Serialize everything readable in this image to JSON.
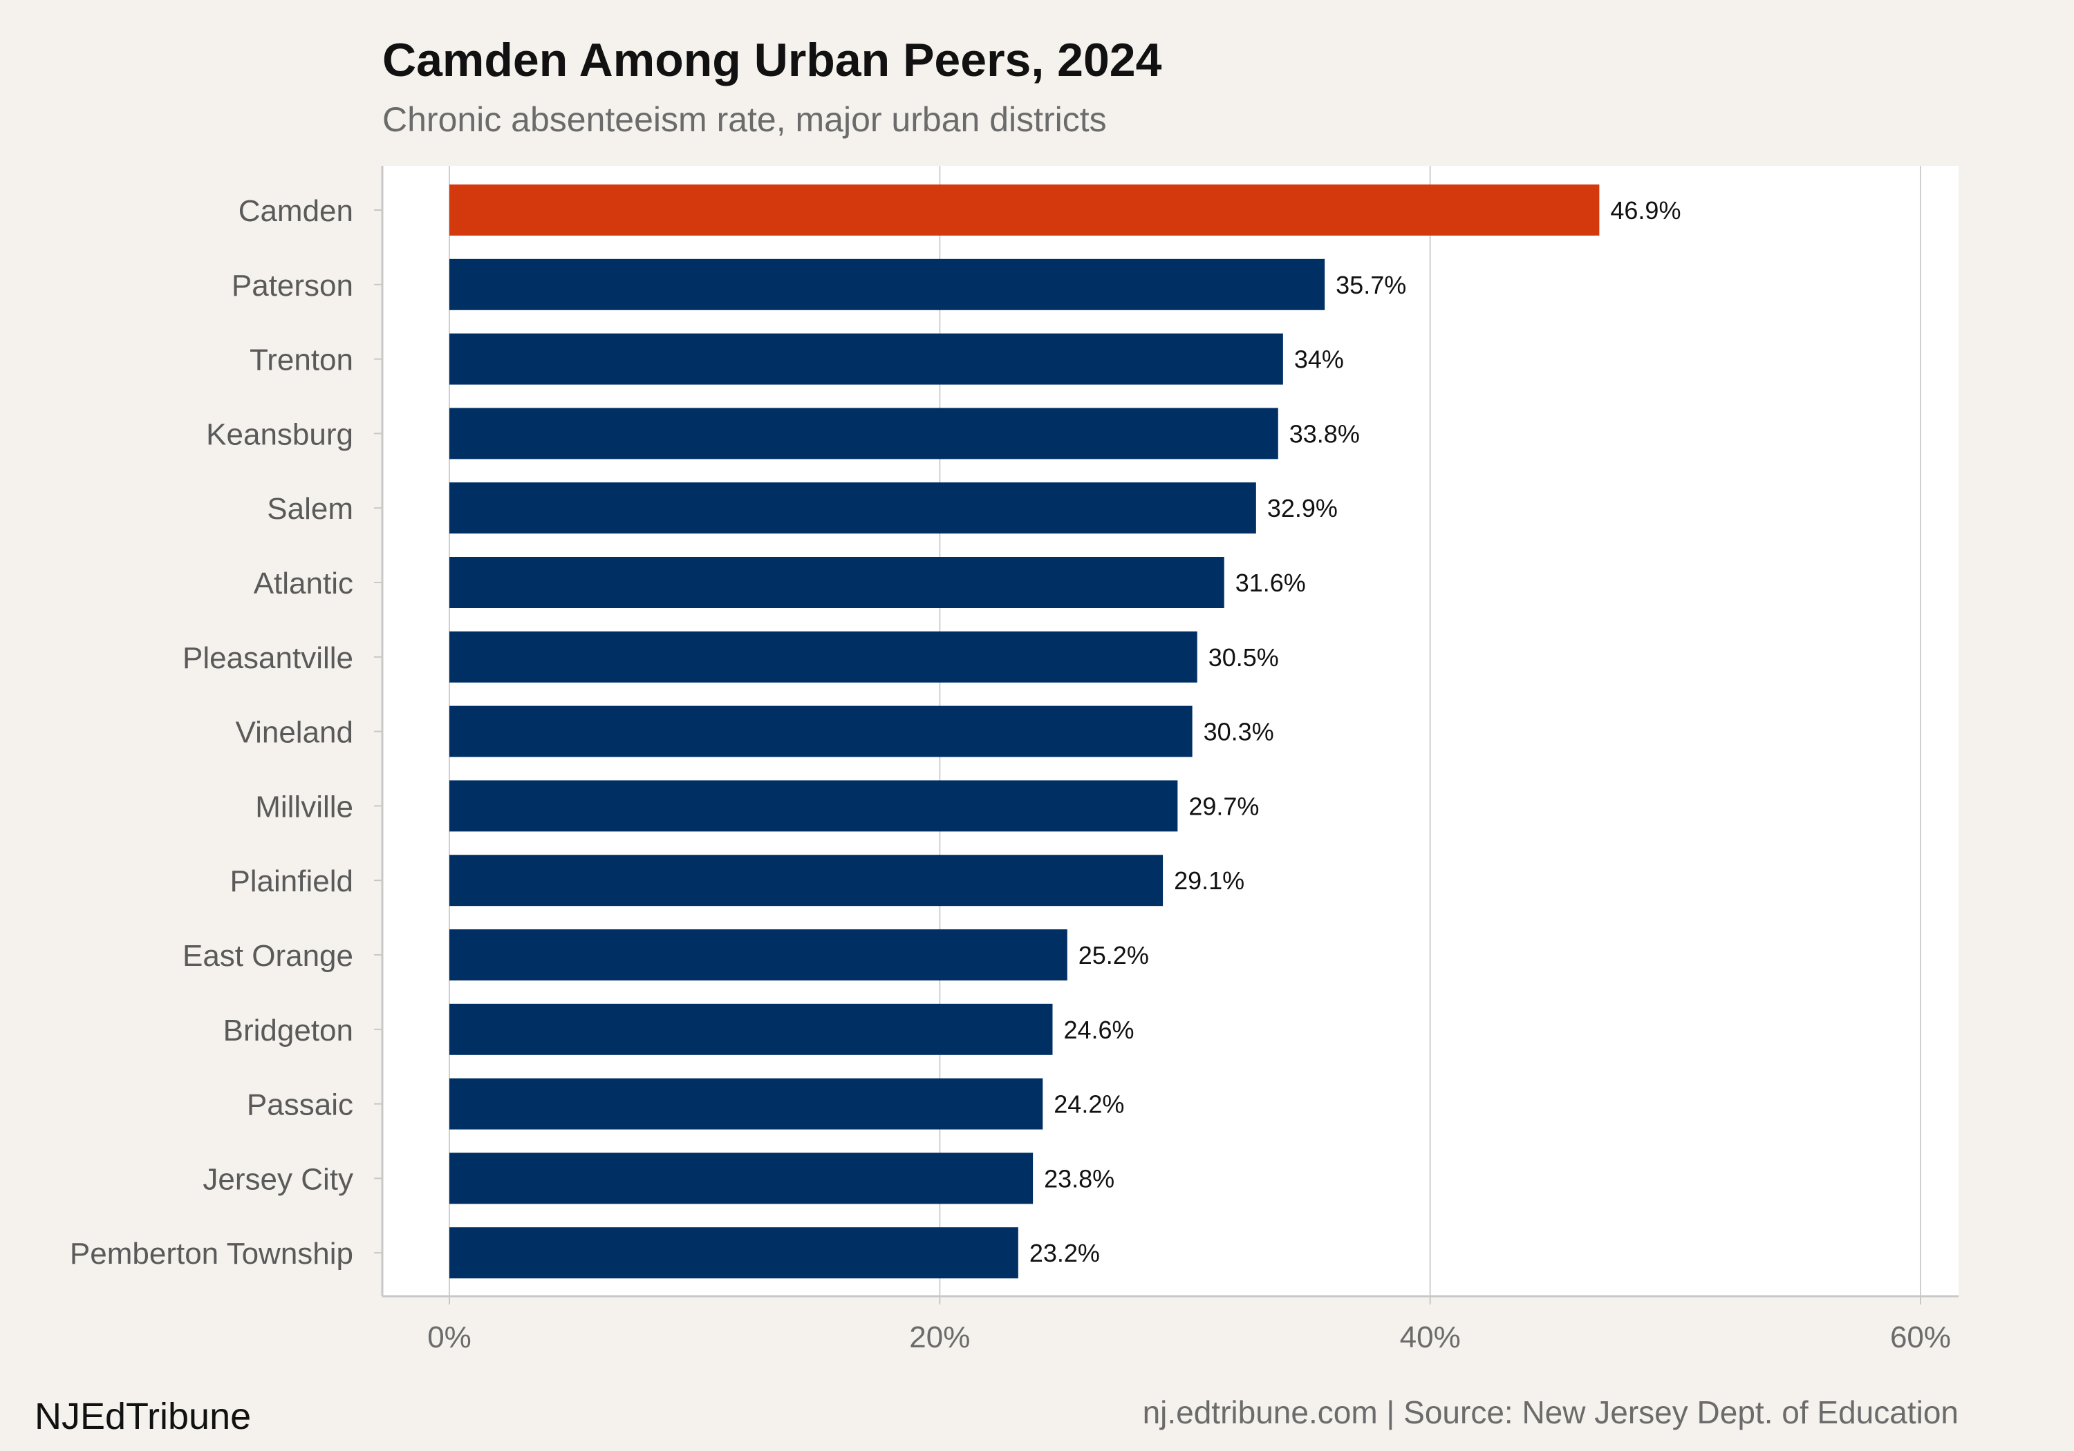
{
  "chart_data": {
    "type": "bar",
    "orientation": "horizontal",
    "title": "Camden Among Urban Peers, 2024",
    "subtitle": "Chronic absenteeism rate, major urban districts",
    "categories": [
      "Camden",
      "Paterson",
      "Trenton",
      "Keansburg",
      "Salem",
      "Atlantic",
      "Pleasantville",
      "Vineland",
      "Millville",
      "Plainfield",
      "East Orange",
      "Bridgeton",
      "Passaic",
      "Jersey City",
      "Pemberton Township"
    ],
    "values": [
      46.9,
      35.7,
      34,
      33.8,
      32.9,
      31.6,
      30.5,
      30.3,
      29.7,
      29.1,
      25.2,
      24.6,
      24.2,
      23.8,
      23.2
    ],
    "value_labels": [
      "46.9%",
      "35.7%",
      "34%",
      "33.8%",
      "32.9%",
      "31.6%",
      "30.5%",
      "30.3%",
      "29.7%",
      "29.1%",
      "25.2%",
      "24.6%",
      "24.2%",
      "23.8%",
      "23.2%"
    ],
    "highlight_category": "Camden",
    "xlim": [
      0,
      60
    ],
    "x_ticks": [
      0,
      20,
      40,
      60
    ],
    "x_tick_labels": [
      "0%",
      "20%",
      "40%",
      "60%"
    ],
    "grid": "vertical",
    "legend": "none",
    "colors": {
      "highlight": "#d4380d",
      "bar": "#003063",
      "background": "#f5f2ee",
      "panel": "#ffffff",
      "grid": "#cfcfcf"
    }
  },
  "footer": {
    "brand": "NJEdTribune",
    "source": "nj.edtribune.com | Source: New Jersey Dept. of Education"
  }
}
